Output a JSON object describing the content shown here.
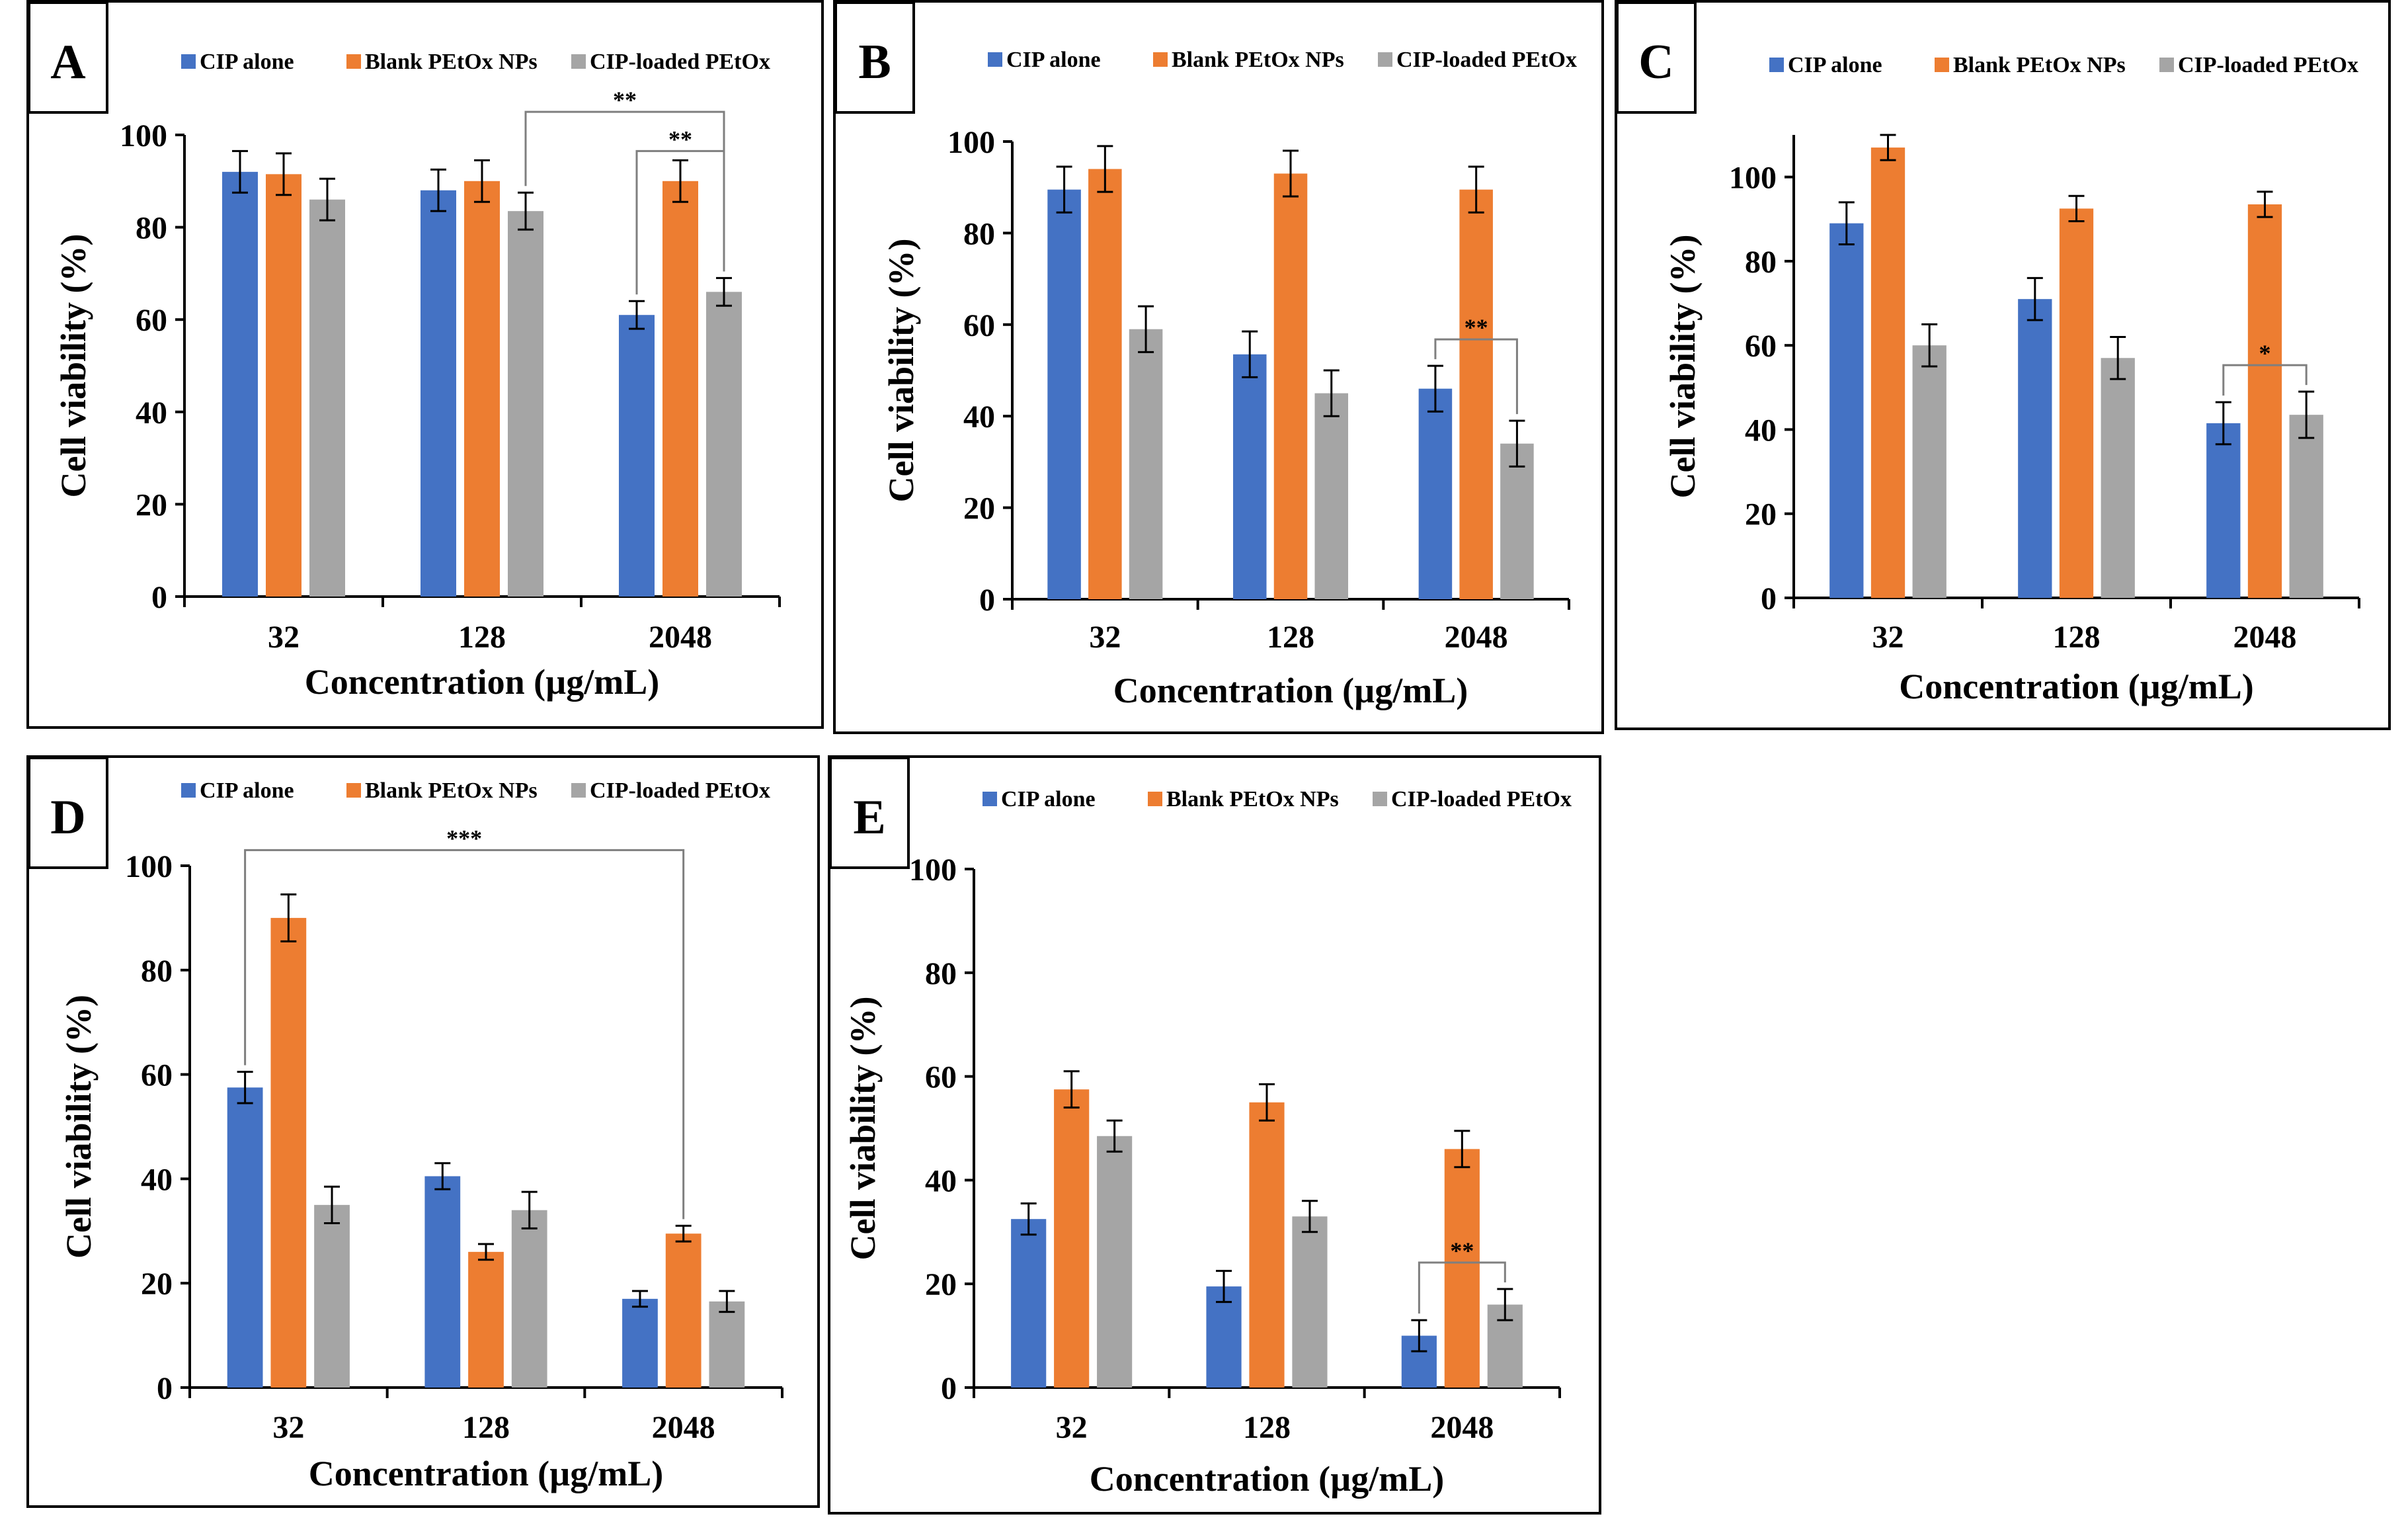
{
  "colors": {
    "CIP alone": "#4472C4",
    "Blank PEtOx NPs": "#ED7D31",
    "CIP-loaded PEtOx": "#A5A5A5",
    "axis": "#000000",
    "bracket": "#7f7f7f"
  },
  "chart_data": [
    {
      "type": "bar",
      "panel": "A",
      "title": "",
      "xlabel": "Concentration (µg/mL)",
      "ylabel": "Cell viability (%)",
      "categories": [
        "32",
        "128",
        "2048"
      ],
      "ylim": [
        0,
        100
      ],
      "yticks": [
        0,
        20,
        40,
        60,
        80,
        100
      ],
      "series": [
        {
          "name": "CIP alone",
          "values": [
            92,
            88,
            61
          ],
          "errors": [
            4.5,
            4.5,
            3
          ]
        },
        {
          "name": "Blank PEtOx NPs",
          "values": [
            91.5,
            90,
            90
          ],
          "errors": [
            4.5,
            4.5,
            4.5
          ]
        },
        {
          "name": "CIP-loaded PEtOx",
          "values": [
            86,
            83.5,
            66
          ],
          "errors": [
            4.5,
            4,
            3
          ]
        }
      ],
      "brackets": [
        {
          "from": [
            1,
            2
          ],
          "to": [
            2,
            2
          ],
          "label": "**"
        },
        {
          "from": [
            2,
            0
          ],
          "to": [
            2,
            2
          ],
          "label": "**"
        }
      ]
    },
    {
      "type": "bar",
      "panel": "B",
      "title": "",
      "xlabel": "Concentration (µg/mL)",
      "ylabel": "Cell viability (%)",
      "categories": [
        "32",
        "128",
        "2048"
      ],
      "ylim": [
        0,
        100
      ],
      "yticks": [
        0,
        20,
        40,
        60,
        80,
        100
      ],
      "series": [
        {
          "name": "CIP alone",
          "values": [
            89.5,
            53.5,
            46
          ],
          "errors": [
            5,
            5,
            5
          ]
        },
        {
          "name": "Blank PEtOx NPs",
          "values": [
            94,
            93,
            89.5
          ],
          "errors": [
            5,
            5,
            5
          ]
        },
        {
          "name": "CIP-loaded PEtOx",
          "values": [
            59,
            45,
            34
          ],
          "errors": [
            5,
            5,
            5
          ]
        }
      ],
      "brackets": [
        {
          "from": [
            2,
            0
          ],
          "to": [
            2,
            2
          ],
          "label": "**"
        }
      ]
    },
    {
      "type": "bar",
      "panel": "C",
      "title": "",
      "xlabel": "Concentration (µg/mL)",
      "ylabel": "Cell viability (%)",
      "categories": [
        "32",
        "128",
        "2048"
      ],
      "ylim": [
        0,
        110
      ],
      "yticks": [
        0,
        20,
        40,
        60,
        80,
        100
      ],
      "series": [
        {
          "name": "CIP alone",
          "values": [
            89,
            71,
            41.5
          ],
          "errors": [
            5,
            5,
            5
          ]
        },
        {
          "name": "Blank PEtOx NPs",
          "values": [
            107,
            92.5,
            93.5
          ],
          "errors": [
            3,
            3,
            3
          ]
        },
        {
          "name": "CIP-loaded PEtOx",
          "values": [
            60,
            57,
            43.5
          ],
          "errors": [
            5,
            5,
            5.5
          ]
        }
      ],
      "brackets": [
        {
          "from": [
            2,
            0
          ],
          "to": [
            2,
            2
          ],
          "label": "*"
        }
      ]
    },
    {
      "type": "bar",
      "panel": "D",
      "title": "",
      "xlabel": "Concentration (µg/mL)",
      "ylabel": "Cell viability (%)",
      "categories": [
        "32",
        "128",
        "2048"
      ],
      "ylim": [
        0,
        100
      ],
      "yticks": [
        0,
        20,
        40,
        60,
        80,
        100
      ],
      "series": [
        {
          "name": "CIP alone",
          "values": [
            57.5,
            40.5,
            17
          ],
          "errors": [
            3,
            2.5,
            1.5
          ]
        },
        {
          "name": "Blank PEtOx NPs",
          "values": [
            90,
            26,
            29.5
          ],
          "errors": [
            4.5,
            1.5,
            1.5
          ]
        },
        {
          "name": "CIP-loaded PEtOx",
          "values": [
            35,
            34,
            16.5
          ],
          "errors": [
            3.5,
            3.5,
            2
          ]
        }
      ],
      "brackets": [
        {
          "from": [
            0,
            0
          ],
          "to": [
            2,
            1
          ],
          "label": "***"
        }
      ]
    },
    {
      "type": "bar",
      "panel": "E",
      "title": "",
      "xlabel": "Concentration (µg/mL)",
      "ylabel": "Cell viability (%)",
      "categories": [
        "32",
        "128",
        "2048"
      ],
      "ylim": [
        0,
        100
      ],
      "yticks": [
        0,
        20,
        40,
        60,
        80,
        100
      ],
      "series": [
        {
          "name": "CIP alone",
          "values": [
            32.5,
            19.5,
            10
          ],
          "errors": [
            3,
            3,
            3
          ]
        },
        {
          "name": "Blank PEtOx NPs",
          "values": [
            57.5,
            55,
            46
          ],
          "errors": [
            3.5,
            3.5,
            3.5
          ]
        },
        {
          "name": "CIP-loaded PEtOx",
          "values": [
            48.5,
            33,
            16
          ],
          "errors": [
            3,
            3,
            3
          ]
        }
      ],
      "brackets": [
        {
          "from": [
            2,
            0
          ],
          "to": [
            2,
            2
          ],
          "label": "**"
        }
      ]
    }
  ]
}
